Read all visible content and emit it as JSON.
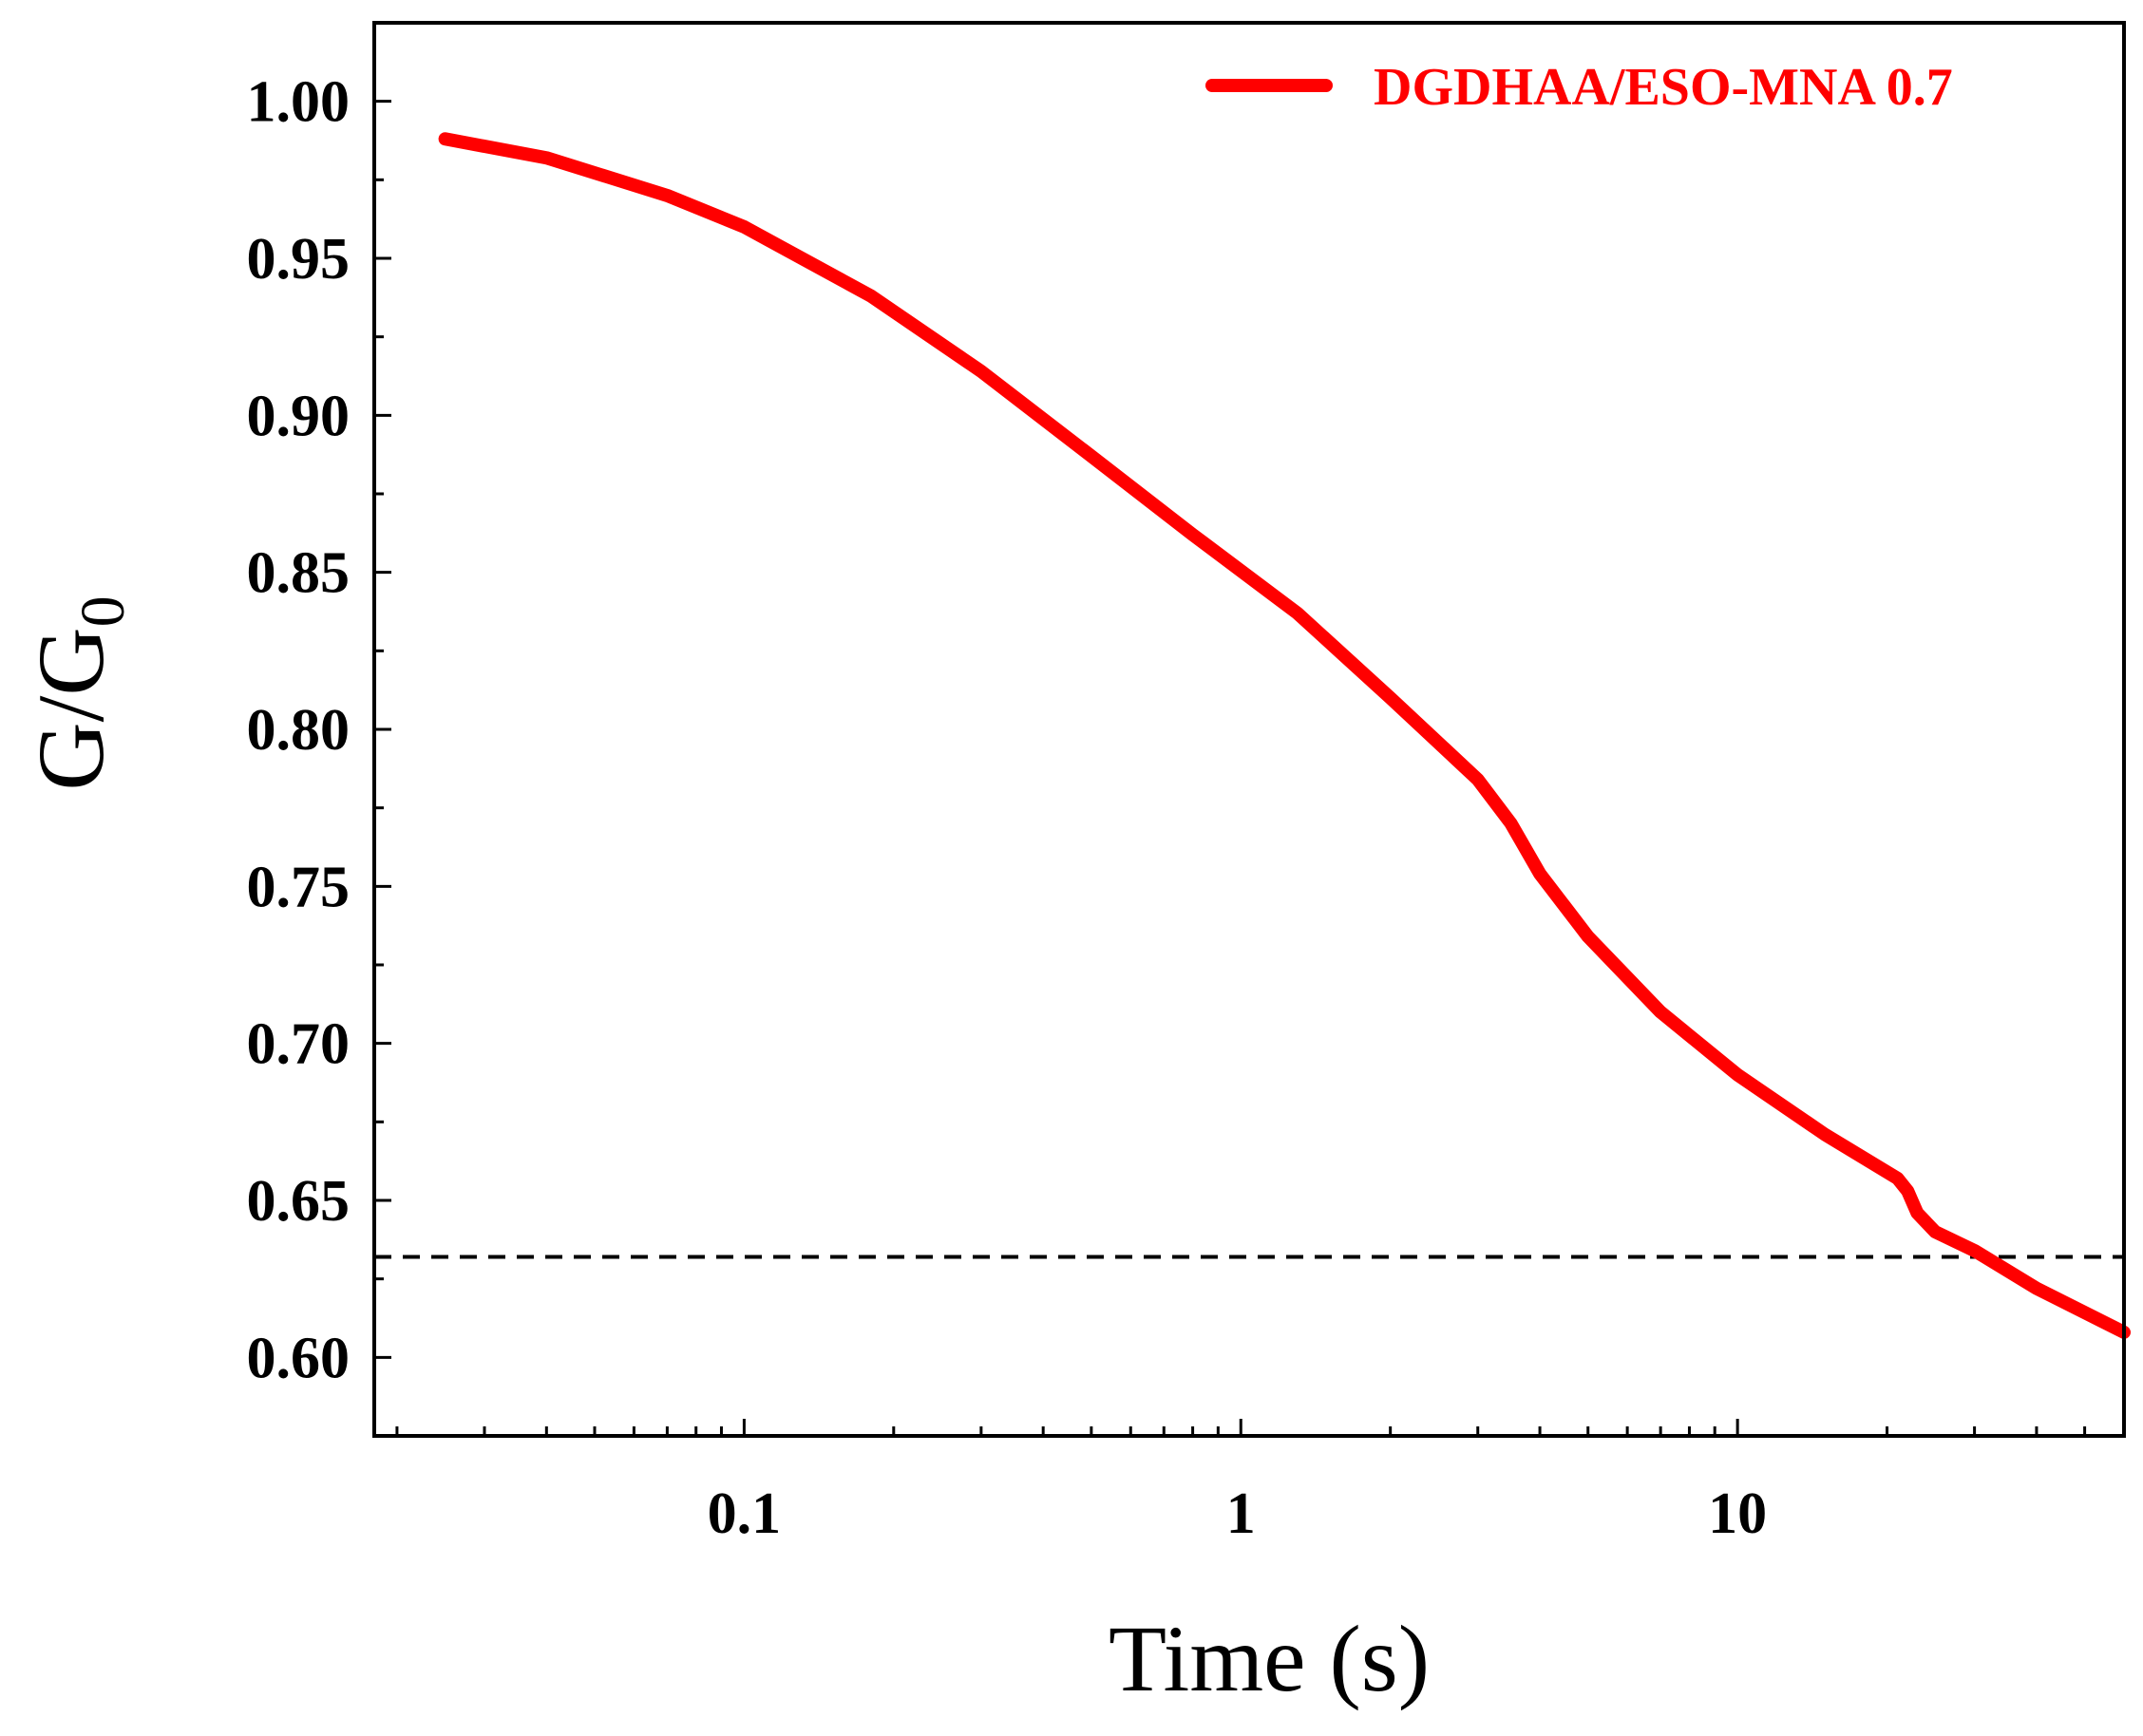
{
  "chart_data": {
    "type": "line",
    "xlabel": "Time (s)",
    "ylabel_main": "G/G",
    "ylabel_sub": "0",
    "xscale": "log",
    "xlim": [
      0.018,
      60
    ],
    "ylim": [
      0.575,
      1.025
    ],
    "x_ticks": [
      {
        "value": 0.1,
        "label": "0.1"
      },
      {
        "value": 1,
        "label": "1"
      },
      {
        "value": 10,
        "label": "10"
      }
    ],
    "y_ticks": [
      {
        "value": 0.6,
        "label": "0.60"
      },
      {
        "value": 0.65,
        "label": "0.65"
      },
      {
        "value": 0.7,
        "label": "0.70"
      },
      {
        "value": 0.75,
        "label": "0.75"
      },
      {
        "value": 0.8,
        "label": "0.80"
      },
      {
        "value": 0.85,
        "label": "0.85"
      },
      {
        "value": 0.9,
        "label": "0.90"
      },
      {
        "value": 0.95,
        "label": "0.95"
      },
      {
        "value": 1.0,
        "label": "1.00"
      }
    ],
    "legend_position": "top-right",
    "grid": false,
    "series": [
      {
        "name": "DGDHAA/ESO-MNA 0.7",
        "color": "#ff0000",
        "x": [
          0.025,
          0.04,
          0.07,
          0.1,
          0.18,
          0.3,
          0.5,
          0.8,
          1.3,
          2.0,
          3.0,
          3.5,
          4.0,
          5.0,
          7.0,
          10.0,
          15.0,
          21.0,
          22.0,
          23.0,
          25.0,
          30.0,
          40.0,
          60.0
        ],
        "y": [
          0.988,
          0.982,
          0.97,
          0.96,
          0.938,
          0.914,
          0.887,
          0.862,
          0.837,
          0.81,
          0.784,
          0.77,
          0.754,
          0.734,
          0.71,
          0.69,
          0.671,
          0.657,
          0.653,
          0.646,
          0.64,
          0.634,
          0.622,
          0.608
        ]
      }
    ],
    "reference_line": {
      "y": 0.632,
      "style": "dashed",
      "color": "#000000"
    }
  }
}
